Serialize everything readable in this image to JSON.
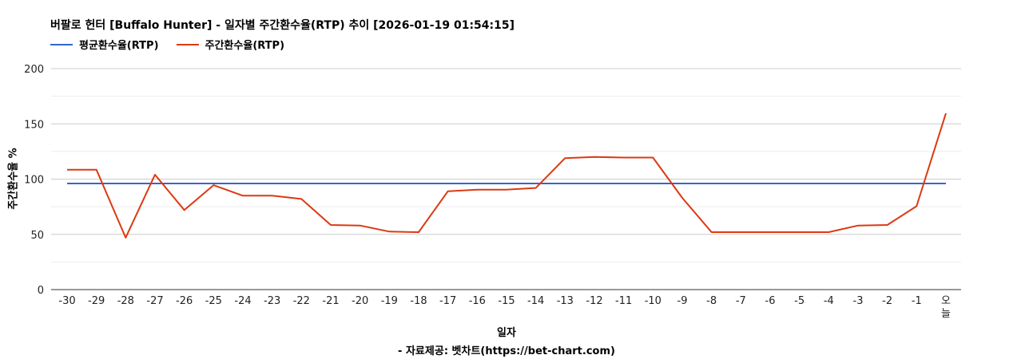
{
  "chart_data": {
    "type": "line",
    "title": "버팔로 헌터 [Buffalo Hunter] - 일자별 주간환수율(RTP) 추이 [2026-01-19 01:54:15]",
    "xlabel": "일자",
    "ylabel": "주간환수율 %",
    "source": "- 자료제공: 벳차트(https://bet-chart.com)",
    "ylim": [
      0,
      200
    ],
    "yticks": [
      0,
      50,
      100,
      150,
      200
    ],
    "grid": true,
    "legend_position": "top-left",
    "categories": [
      "-30",
      "-29",
      "-28",
      "-27",
      "-26",
      "-25",
      "-24",
      "-23",
      "-22",
      "-21",
      "-20",
      "-19",
      "-18",
      "-17",
      "-16",
      "-15",
      "-14",
      "-13",
      "-12",
      "-11",
      "-10",
      "-9",
      "-8",
      "-7",
      "-6",
      "-5",
      "-4",
      "-3",
      "-2",
      "-1",
      "오늘"
    ],
    "series": [
      {
        "name": "평균환수율(RTP)",
        "color": "#3366cc",
        "values": [
          96,
          96,
          96,
          96,
          96,
          96,
          96,
          96,
          96,
          96,
          96,
          96,
          96,
          96,
          96,
          96,
          96,
          96,
          96,
          96,
          96,
          96,
          96,
          96,
          96,
          96,
          96,
          96,
          96,
          96,
          96
        ]
      },
      {
        "name": "주간환수율(RTP)",
        "color": "#dc3912",
        "values": [
          108.5,
          108.5,
          47,
          104,
          72,
          94.5,
          85,
          85,
          82,
          58.5,
          58,
          52.5,
          52,
          89,
          90.5,
          90.5,
          92,
          119,
          120,
          119.5,
          119.5,
          83,
          52,
          52,
          52,
          52,
          52,
          58,
          58.5,
          75.5,
          159.5
        ]
      }
    ]
  }
}
